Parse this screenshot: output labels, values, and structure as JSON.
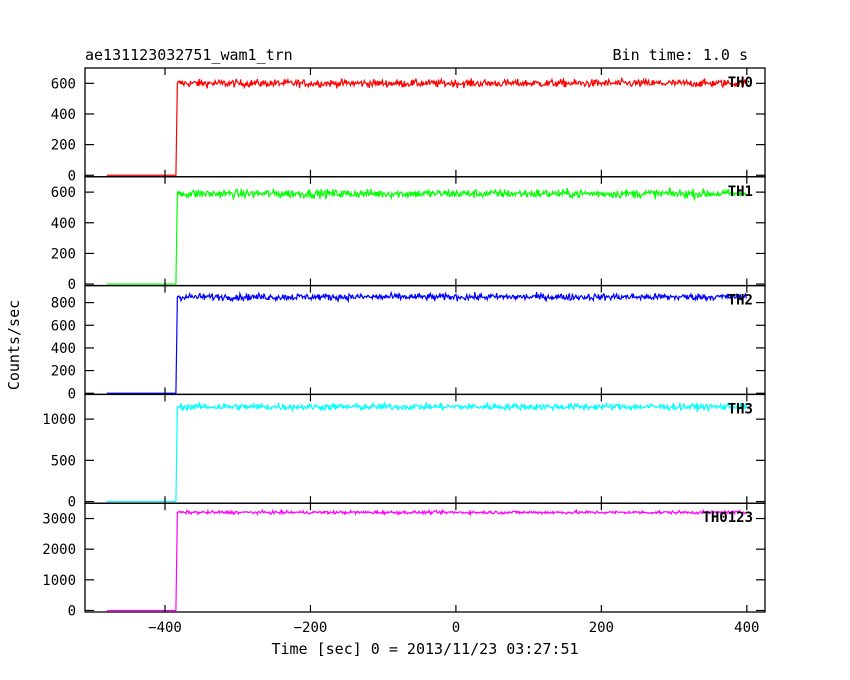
{
  "header": {
    "title": "ae131123032751_wam1_trn",
    "bin_time": "Bin time: 1.0 s"
  },
  "chart_data": {
    "type": "line",
    "title": "ae131123032751_wam1_trn",
    "subtitle": "Bin time: 1.0 s",
    "xlabel": "Time [sec] 0 = 2013/11/23 03:27:51",
    "ylabel": "Counts/sec",
    "xlim": [
      -510,
      425
    ],
    "x_ticks": [
      -400,
      -200,
      0,
      200,
      400
    ],
    "x_tick_labels": [
      "−400",
      "−200",
      "0",
      "200",
      "400"
    ],
    "x_range": [
      -480,
      400
    ],
    "step_time": -384,
    "grid": false,
    "panels": [
      {
        "name": "TH0",
        "color": "#ff0000",
        "ylim": [
          -10,
          700
        ],
        "y_ticks": [
          0,
          200,
          400,
          600
        ],
        "y_tick_labels": [
          "0",
          "200",
          "400",
          "600"
        ],
        "pre_level": 0,
        "mean_level": 600,
        "noise": 25
      },
      {
        "name": "TH1",
        "color": "#00ff00",
        "ylim": [
          -10,
          700
        ],
        "y_ticks": [
          0,
          200,
          400,
          600
        ],
        "y_tick_labels": [
          "0",
          "200",
          "400",
          "600"
        ],
        "pre_level": 0,
        "mean_level": 590,
        "noise": 28
      },
      {
        "name": "TH2",
        "color": "#0000ff",
        "ylim": [
          -10,
          950
        ],
        "y_ticks": [
          0,
          200,
          400,
          600,
          800
        ],
        "y_tick_labels": [
          "0",
          "200",
          "400",
          "600",
          "800"
        ],
        "pre_level": 0,
        "mean_level": 850,
        "noise": 30
      },
      {
        "name": "TH3",
        "color": "#00ffff",
        "ylim": [
          -20,
          1300
        ],
        "y_ticks": [
          0,
          500,
          1000
        ],
        "y_tick_labels": [
          "0",
          "500",
          "1000"
        ],
        "pre_level": 0,
        "mean_level": 1150,
        "noise": 40
      },
      {
        "name": "TH0123",
        "color": "#ff00ff",
        "ylim": [
          -50,
          3500
        ],
        "y_ticks": [
          0,
          1000,
          2000,
          3000
        ],
        "y_tick_labels": [
          "0",
          "1000",
          "2000",
          "3000"
        ],
        "pre_level": 0,
        "mean_level": 3200,
        "noise": 50
      }
    ]
  }
}
